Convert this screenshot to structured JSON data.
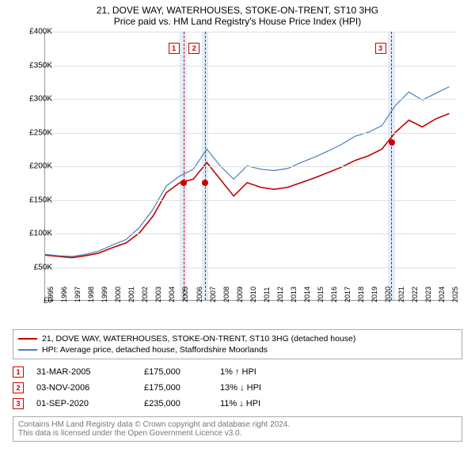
{
  "title_main": "21, DOVE WAY, WATERHOUSES, STOKE-ON-TRENT, ST10 3HG",
  "title_sub": "Price paid vs. HM Land Registry's House Price Index (HPI)",
  "chart": {
    "type": "line",
    "background_color": "#ffffff",
    "grid_color": "#e0e0e0",
    "ylim": [
      0,
      400000
    ],
    "ytick_step": 50000,
    "y_ticks": [
      "£0",
      "£50K",
      "£100K",
      "£150K",
      "£200K",
      "£250K",
      "£300K",
      "£350K",
      "£400K"
    ],
    "x_years": [
      "1995",
      "1996",
      "1997",
      "1998",
      "1999",
      "2000",
      "2001",
      "2002",
      "2003",
      "2004",
      "2005",
      "2006",
      "2007",
      "2008",
      "2009",
      "2010",
      "2011",
      "2012",
      "2013",
      "2014",
      "2015",
      "2016",
      "2017",
      "2018",
      "2019",
      "2020",
      "2021",
      "2022",
      "2023",
      "2024",
      "2025"
    ],
    "xlim": [
      1995,
      2025.5
    ],
    "series": [
      {
        "name": "property",
        "color": "#c00000",
        "width": 1.6,
        "points": [
          [
            1995,
            67000
          ],
          [
            1996,
            65000
          ],
          [
            1997,
            63000
          ],
          [
            1998,
            66000
          ],
          [
            1999,
            70000
          ],
          [
            2000,
            78000
          ],
          [
            2001,
            85000
          ],
          [
            2002,
            100000
          ],
          [
            2003,
            125000
          ],
          [
            2004,
            160000
          ],
          [
            2005,
            175000
          ],
          [
            2006,
            180000
          ],
          [
            2007,
            205000
          ],
          [
            2008,
            180000
          ],
          [
            2009,
            155000
          ],
          [
            2010,
            175000
          ],
          [
            2011,
            168000
          ],
          [
            2012,
            165000
          ],
          [
            2013,
            168000
          ],
          [
            2014,
            175000
          ],
          [
            2015,
            182000
          ],
          [
            2016,
            190000
          ],
          [
            2017,
            198000
          ],
          [
            2018,
            208000
          ],
          [
            2019,
            215000
          ],
          [
            2020,
            225000
          ],
          [
            2021,
            250000
          ],
          [
            2022,
            268000
          ],
          [
            2023,
            258000
          ],
          [
            2024,
            270000
          ],
          [
            2025,
            278000
          ]
        ]
      },
      {
        "name": "hpi",
        "color": "#4a7ebb",
        "width": 1.2,
        "points": [
          [
            1995,
            68000
          ],
          [
            1996,
            66000
          ],
          [
            1997,
            65000
          ],
          [
            1998,
            68000
          ],
          [
            1999,
            73000
          ],
          [
            2000,
            82000
          ],
          [
            2001,
            90000
          ],
          [
            2002,
            108000
          ],
          [
            2003,
            135000
          ],
          [
            2004,
            170000
          ],
          [
            2005,
            185000
          ],
          [
            2006,
            195000
          ],
          [
            2007,
            225000
          ],
          [
            2008,
            200000
          ],
          [
            2009,
            180000
          ],
          [
            2010,
            200000
          ],
          [
            2011,
            195000
          ],
          [
            2012,
            193000
          ],
          [
            2013,
            196000
          ],
          [
            2014,
            205000
          ],
          [
            2015,
            213000
          ],
          [
            2016,
            222000
          ],
          [
            2017,
            232000
          ],
          [
            2018,
            244000
          ],
          [
            2019,
            250000
          ],
          [
            2020,
            260000
          ],
          [
            2021,
            290000
          ],
          [
            2022,
            310000
          ],
          [
            2023,
            298000
          ],
          [
            2024,
            308000
          ],
          [
            2025,
            318000
          ]
        ]
      }
    ],
    "sale_points": [
      {
        "year": 2005.25,
        "value": 175000
      },
      {
        "year": 2006.85,
        "value": 175000
      },
      {
        "year": 2020.67,
        "value": 235000
      }
    ],
    "bands": [
      {
        "start": 2005.0,
        "end": 2005.5,
        "marker": "1",
        "marker_year": 2004.6
      },
      {
        "start": 2006.6,
        "end": 2007.1,
        "marker": "2",
        "marker_year": 2006.1
      },
      {
        "start": 2020.4,
        "end": 2020.9,
        "marker": "3",
        "marker_year": 2019.9
      }
    ],
    "band_color": "#e3ecf7"
  },
  "legend": {
    "property": "21, DOVE WAY, WATERHOUSES, STOKE-ON-TRENT, ST10 3HG (detached house)",
    "hpi": "HPI: Average price, detached house, Staffordshire Moorlands"
  },
  "events": [
    {
      "n": "1",
      "date": "31-MAR-2005",
      "price": "£175,000",
      "diff": "1% ↑ HPI"
    },
    {
      "n": "2",
      "date": "03-NOV-2006",
      "price": "£175,000",
      "diff": "13% ↓ HPI"
    },
    {
      "n": "3",
      "date": "01-SEP-2020",
      "price": "£235,000",
      "diff": "11% ↓ HPI"
    }
  ],
  "attribution": {
    "line1": "Contains HM Land Registry data © Crown copyright and database right 2024.",
    "line2": "This data is licensed under the Open Government Licence v3.0."
  }
}
